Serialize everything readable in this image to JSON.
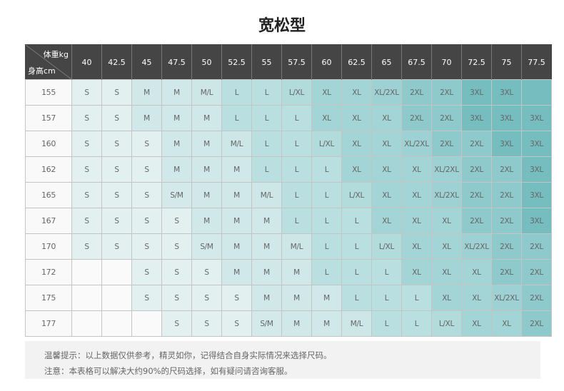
{
  "title": "宽松型",
  "table": {
    "corner_weight": "体重kg",
    "corner_height": "身高cm",
    "weights": [
      "40",
      "42.5",
      "45",
      "47.5",
      "50",
      "52.5",
      "55",
      "57.5",
      "60",
      "62.5",
      "65",
      "67.5",
      "70",
      "72.5",
      "75",
      "77.5"
    ],
    "rows": [
      {
        "height": "155",
        "sizes": [
          "S",
          "S",
          "M",
          "M",
          "M/L",
          "L",
          "L",
          "L/XL",
          "XL",
          "XL",
          "XL/2XL",
          "2XL",
          "2XL",
          "3XL",
          "3XL",
          ""
        ]
      },
      {
        "height": "157",
        "sizes": [
          "S",
          "S",
          "M",
          "M",
          "M",
          "L",
          "L",
          "L",
          "XL",
          "XL",
          "XL",
          "2XL",
          "2XL",
          "3XL",
          "3XL",
          "3XL"
        ]
      },
      {
        "height": "160",
        "sizes": [
          "S",
          "S",
          "S",
          "M",
          "M",
          "M/L",
          "L",
          "L",
          "L/XL",
          "XL",
          "XL",
          "XL/2XL",
          "2XL",
          "2XL",
          "3XL",
          "3XL"
        ]
      },
      {
        "height": "162",
        "sizes": [
          "S",
          "S",
          "S",
          "M",
          "M",
          "M",
          "L",
          "L",
          "L",
          "XL",
          "XL",
          "XL",
          "XL/2XL",
          "2XL",
          "2XL",
          "3XL"
        ]
      },
      {
        "height": "165",
        "sizes": [
          "S",
          "S",
          "S",
          "S/M",
          "M",
          "M",
          "M/L",
          "L",
          "L",
          "L/XL",
          "XL",
          "XL",
          "XL/2XL",
          "2XL",
          "2XL",
          "3XL"
        ]
      },
      {
        "height": "167",
        "sizes": [
          "S",
          "S",
          "S",
          "S",
          "M",
          "M",
          "M",
          "L",
          "L",
          "L",
          "XL",
          "XL",
          "XL",
          "2XL",
          "2XL",
          "3XL"
        ]
      },
      {
        "height": "170",
        "sizes": [
          "S",
          "S",
          "S",
          "S",
          "S/M",
          "M",
          "M",
          "M/L",
          "L",
          "L",
          "L/XL",
          "XL",
          "XL",
          "XL/2XL",
          "2XL",
          "2XL"
        ]
      },
      {
        "height": "172",
        "sizes": [
          "",
          "",
          "S",
          "S",
          "S",
          "M",
          "M",
          "M",
          "L",
          "L",
          "L",
          "XL",
          "XL",
          "XL",
          "2XL",
          "2XL"
        ]
      },
      {
        "height": "175",
        "sizes": [
          "",
          "",
          "S",
          "S",
          "S",
          "S",
          "M",
          "M",
          "M",
          "L",
          "L",
          "L",
          "XL",
          "XL",
          "XL/2XL",
          "2XL"
        ]
      },
      {
        "height": "177",
        "sizes": [
          "",
          "",
          "",
          "S",
          "S",
          "S",
          "S/M",
          "M",
          "M",
          "M/L",
          "L",
          "L",
          "L/XL",
          "XL",
          "XL",
          "2XL"
        ]
      }
    ],
    "size_colors": {
      "S": "#e3f0f0",
      "S/M": "#d3e9ea",
      "M": "#d0e8e9",
      "M/L": "#cde6e7",
      "L": "#badfe0",
      "L/XL": "#b2dbdc",
      "XL": "#a3d4d6",
      "XL/2XL": "#9ed1d3",
      "2XL": "#8ec9cb",
      "3XL": "#76bdc0",
      "": "#fafafa"
    },
    "header_bg": "#454545"
  },
  "notes": [
    "温馨提示：以上数据仅供参考，精灵如你，记得结合自身实际情况来选择尺码。",
    "注意：本表格可以解决大约90%的尺码选择，如有疑问请咨询客服。"
  ]
}
